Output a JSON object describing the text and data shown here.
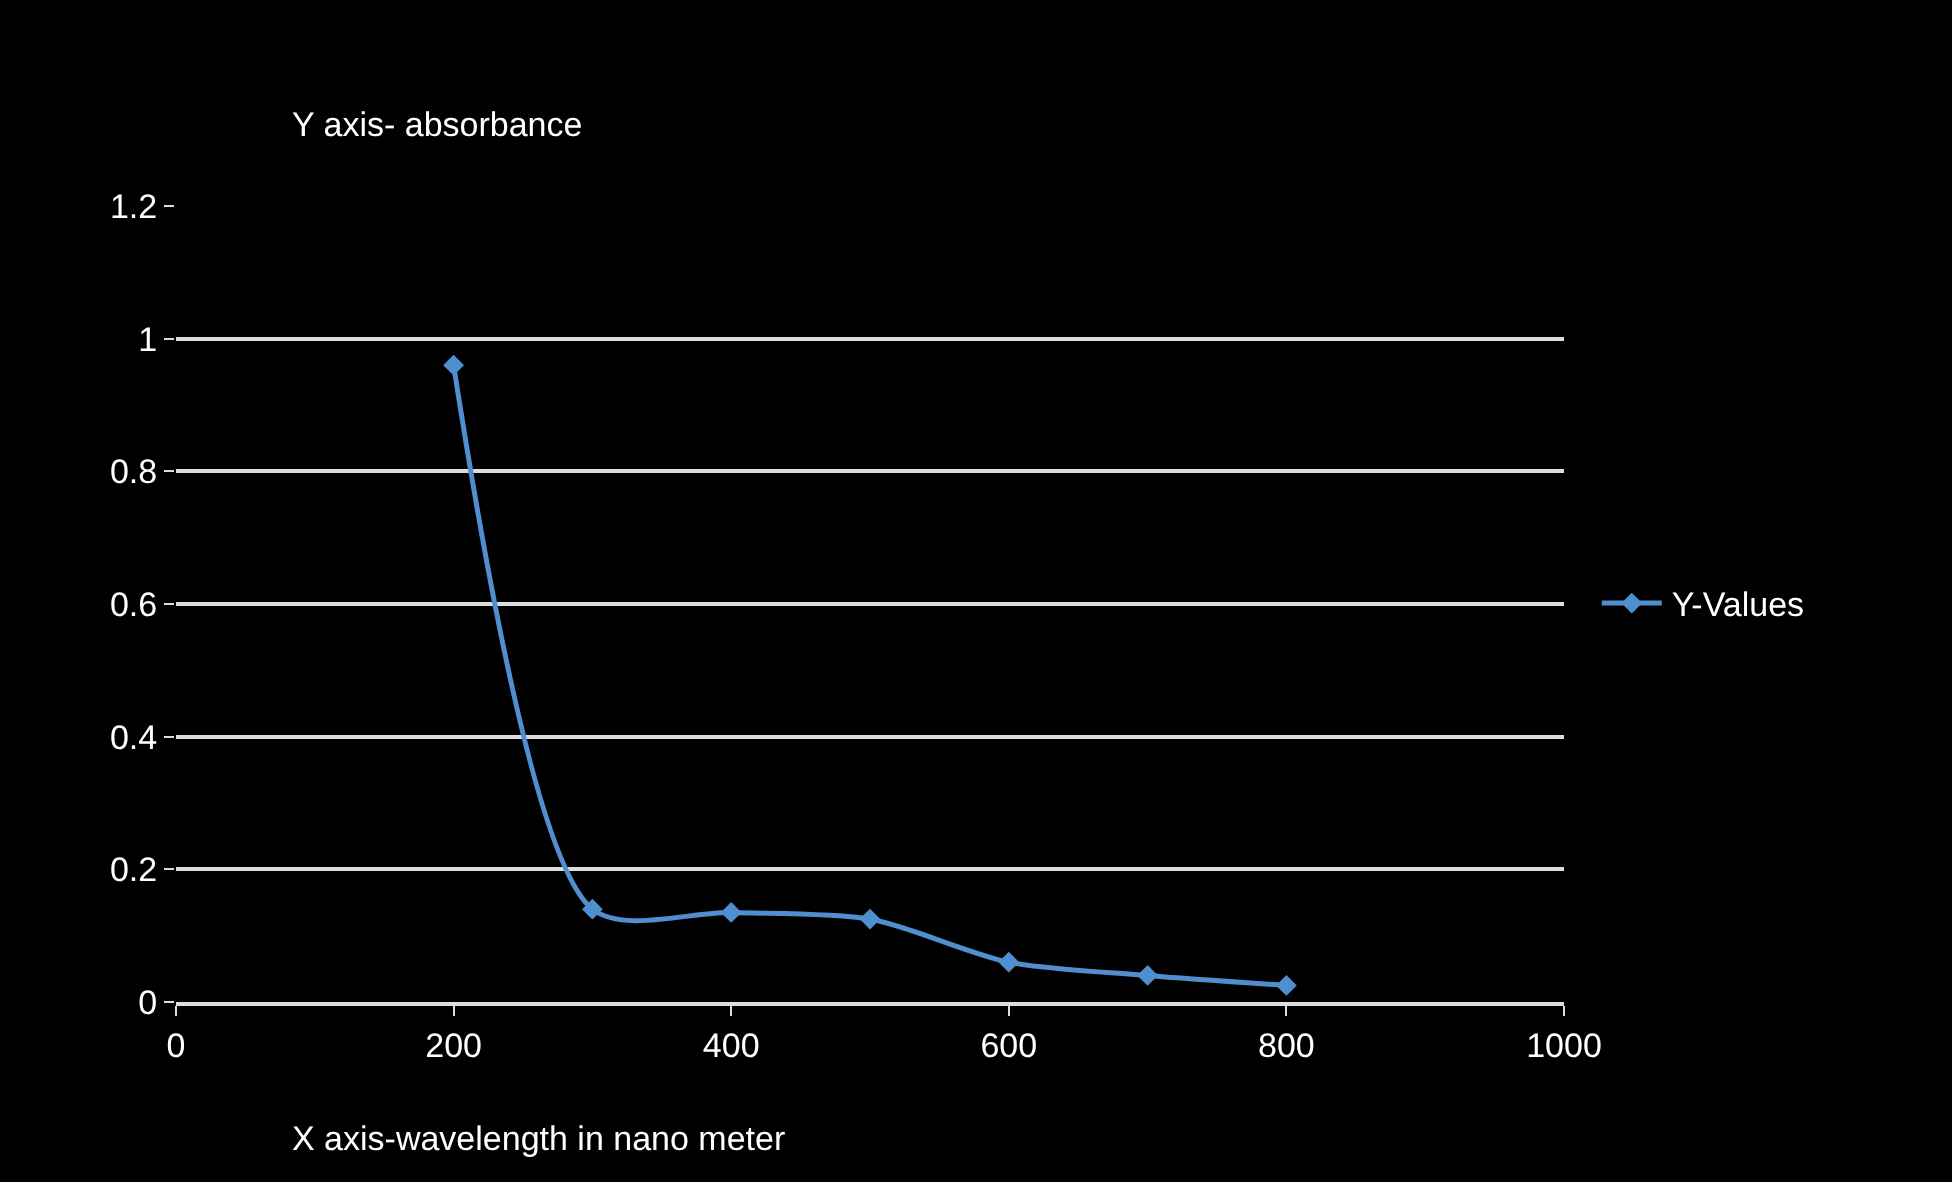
{
  "chart_data": {
    "type": "line",
    "ylabel": "Y axis- absorbance",
    "xlabel": "X axis-wavelength in nano meter",
    "x": [
      200,
      300,
      400,
      500,
      600,
      700,
      800
    ],
    "series": [
      {
        "name": "Y-Values",
        "color": "#4f8fd0",
        "values": [
          0.96,
          0.14,
          0.135,
          0.125,
          0.06,
          0.04,
          0.025
        ]
      }
    ],
    "xlim": [
      0,
      1000
    ],
    "xticks": [
      0,
      200,
      400,
      600,
      800,
      1000
    ],
    "ylim": [
      0,
      1.2
    ],
    "yticks": [
      0,
      0.2,
      0.4,
      0.6,
      0.8,
      1,
      1.2
    ],
    "grid": "y",
    "legend": "right",
    "marker": "diamond",
    "line_style": "solid"
  }
}
